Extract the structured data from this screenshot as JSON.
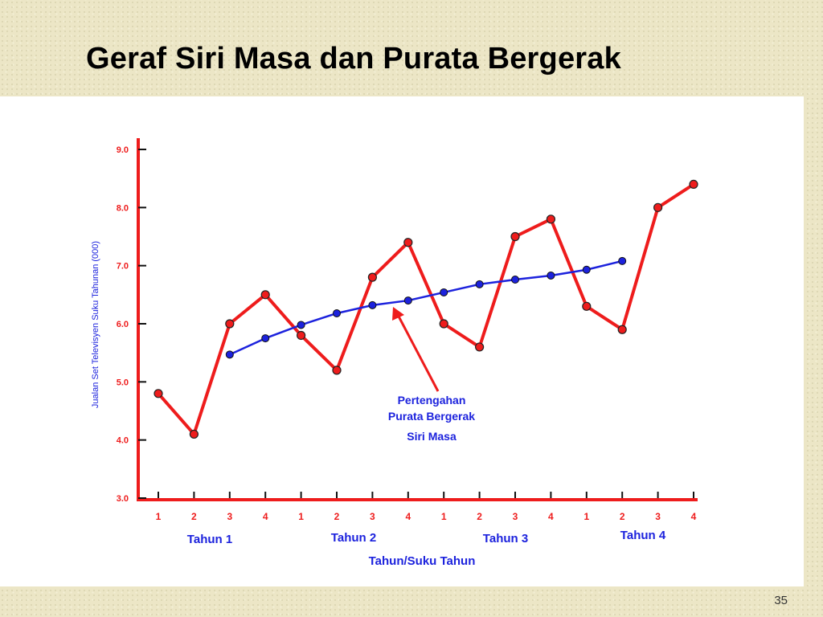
{
  "slide": {
    "title": "Geraf Siri Masa dan Purata Bergerak",
    "page_number": "35"
  },
  "colors": {
    "series_line": "#ee1c1c",
    "moving_average": "#1c22dd",
    "axis": "#ee1c1c",
    "label_blue": "#1c22dd"
  },
  "chart_data": {
    "type": "line",
    "ylabel": "Jualan Set Televisyen Suku Tahunan (000)",
    "xlabel": "Tahun/Suku Tahun",
    "ylim": [
      3.0,
      9.0
    ],
    "y_ticks": [
      "3.0",
      "4.0",
      "5.0",
      "6.0",
      "7.0",
      "8.0",
      "9.0"
    ],
    "x_tick_labels": [
      "1",
      "2",
      "3",
      "4",
      "1",
      "2",
      "3",
      "4",
      "1",
      "2",
      "3",
      "4",
      "1",
      "2",
      "3",
      "4"
    ],
    "year_labels": [
      "Tahun 1",
      "Tahun 2",
      "Tahun 3",
      "Tahun 4"
    ],
    "annotation": [
      "Pertengahan",
      "Purata Bergerak",
      "Siri Masa"
    ],
    "series": [
      {
        "values": [
          4.8,
          4.1,
          6.0,
          6.5,
          5.8,
          5.2,
          6.8,
          7.4,
          6.0,
          5.6,
          7.5,
          7.8,
          6.3,
          5.9,
          8.0,
          8.4
        ]
      },
      {
        "x_start_index": 2,
        "values": [
          5.47,
          5.75,
          5.98,
          6.18,
          6.32,
          6.4,
          6.54,
          6.68,
          6.76,
          6.83,
          6.93,
          7.08
        ]
      }
    ],
    "grid": false,
    "legend": "none"
  }
}
